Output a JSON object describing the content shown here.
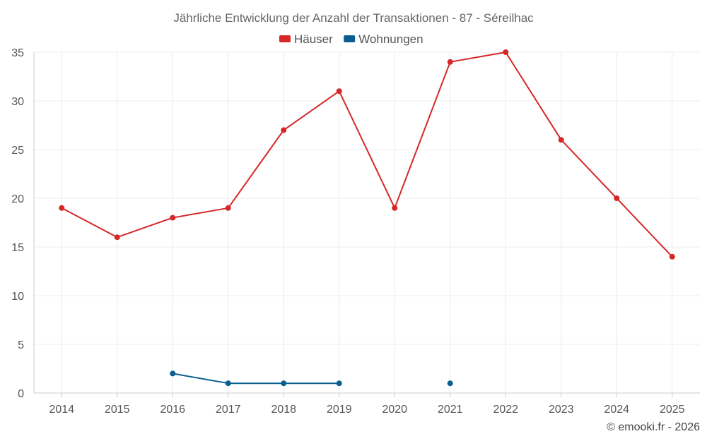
{
  "chart_data": {
    "type": "line",
    "title": "Jährliche Entwicklung der Anzahl der Transaktionen - 87 - Séreilhac",
    "xlabel": "",
    "ylabel": "",
    "categories": [
      "2014",
      "2015",
      "2016",
      "2017",
      "2018",
      "2019",
      "2020",
      "2021",
      "2022",
      "2023",
      "2024",
      "2025"
    ],
    "ylim": [
      0,
      35
    ],
    "yticks": [
      0,
      5,
      10,
      15,
      20,
      25,
      30,
      35
    ],
    "grid": true,
    "legend_position": "top-center",
    "series": [
      {
        "name": "Häuser",
        "color": "#d62728",
        "values": [
          19,
          16,
          18,
          19,
          27,
          31,
          19,
          34,
          35,
          26,
          20,
          14
        ]
      },
      {
        "name": "Wohnungen",
        "color": "#0a5e91",
        "values": [
          null,
          null,
          2,
          1,
          1,
          1,
          null,
          1,
          null,
          null,
          null,
          null
        ]
      }
    ]
  },
  "credit": "© emooki.fr - 2026"
}
